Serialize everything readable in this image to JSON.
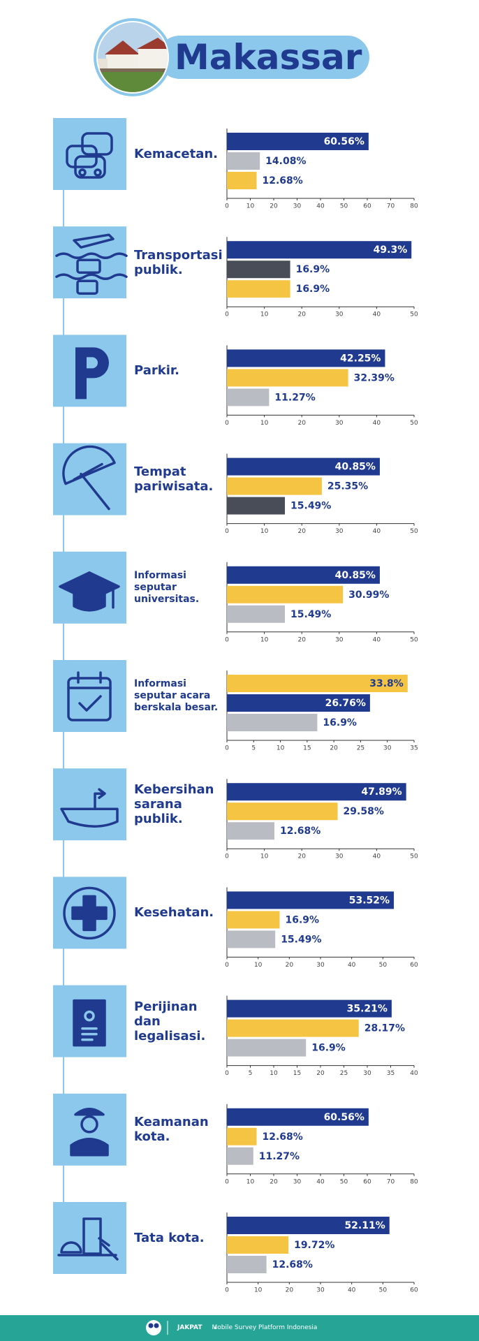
{
  "header": {
    "title": "Makassar"
  },
  "chart_data": [
    {
      "type": "bar",
      "orientation": "horizontal",
      "title": "Kemacetan.",
      "values": [
        60.56,
        14.08,
        12.68
      ],
      "value_labels": [
        "60.56%",
        "14.08%",
        "12.68%"
      ],
      "colors": [
        "#1f3a8f",
        "#b9bcc3",
        "#f5c443"
      ],
      "xlim": [
        0,
        80
      ],
      "xticks": [
        0,
        10,
        20,
        30,
        40,
        50,
        60,
        70,
        80
      ]
    },
    {
      "type": "bar",
      "orientation": "horizontal",
      "title": "Transportasi publik.",
      "values": [
        49.3,
        16.9,
        16.9
      ],
      "value_labels": [
        "49.3%",
        "16.9%",
        "16.9%"
      ],
      "colors": [
        "#1f3a8f",
        "#484d57",
        "#f5c443"
      ],
      "xlim": [
        0,
        50
      ],
      "xticks": [
        0,
        10,
        20,
        30,
        40,
        50
      ]
    },
    {
      "type": "bar",
      "orientation": "horizontal",
      "title": "Parkir.",
      "values": [
        42.25,
        32.39,
        11.27
      ],
      "value_labels": [
        "42.25%",
        "32.39%",
        "11.27%"
      ],
      "colors": [
        "#1f3a8f",
        "#f5c443",
        "#b9bcc3"
      ],
      "xlim": [
        0,
        50
      ],
      "xticks": [
        0,
        10,
        20,
        30,
        40,
        50
      ]
    },
    {
      "type": "bar",
      "orientation": "horizontal",
      "title": "Tempat pariwisata.",
      "values": [
        40.85,
        25.35,
        15.49
      ],
      "value_labels": [
        "40.85%",
        "25.35%",
        "15.49%"
      ],
      "colors": [
        "#1f3a8f",
        "#f5c443",
        "#484d57"
      ],
      "xlim": [
        0,
        50
      ],
      "xticks": [
        0,
        10,
        20,
        30,
        40,
        50
      ]
    },
    {
      "type": "bar",
      "orientation": "horizontal",
      "title": "Informasi seputar universitas.",
      "values": [
        40.85,
        30.99,
        15.49
      ],
      "value_labels": [
        "40.85%",
        "30.99%",
        "15.49%"
      ],
      "colors": [
        "#1f3a8f",
        "#f5c443",
        "#b9bcc3"
      ],
      "xlim": [
        0,
        50
      ],
      "xticks": [
        0,
        10,
        20,
        30,
        40,
        50
      ]
    },
    {
      "type": "bar",
      "orientation": "horizontal",
      "title": "Informasi seputar acara berskala besar.",
      "values": [
        33.8,
        26.76,
        16.9
      ],
      "value_labels": [
        "33.8%",
        "26.76%",
        "16.9%"
      ],
      "colors": [
        "#f5c443",
        "#1f3a8f",
        "#b9bcc3"
      ],
      "xlim": [
        0,
        35
      ],
      "xticks": [
        0,
        5,
        10,
        15,
        20,
        25,
        30,
        35
      ]
    },
    {
      "type": "bar",
      "orientation": "horizontal",
      "title": "Kebersihan sarana publik.",
      "values": [
        47.89,
        29.58,
        12.68
      ],
      "value_labels": [
        "47.89%",
        "29.58%",
        "12.68%"
      ],
      "colors": [
        "#1f3a8f",
        "#f5c443",
        "#b9bcc3"
      ],
      "xlim": [
        0,
        50
      ],
      "xticks": [
        0,
        10,
        20,
        30,
        40,
        50
      ]
    },
    {
      "type": "bar",
      "orientation": "horizontal",
      "title": "Kesehatan.",
      "values": [
        53.52,
        16.9,
        15.49
      ],
      "value_labels": [
        "53.52%",
        "16.9%",
        "15.49%"
      ],
      "colors": [
        "#1f3a8f",
        "#f5c443",
        "#b9bcc3"
      ],
      "xlim": [
        0,
        60
      ],
      "xticks": [
        0,
        10,
        20,
        30,
        40,
        50,
        60
      ]
    },
    {
      "type": "bar",
      "orientation": "horizontal",
      "title": "Perijinan dan legalisasi.",
      "values": [
        35.21,
        28.17,
        16.9
      ],
      "value_labels": [
        "35.21%",
        "28.17%",
        "16.9%"
      ],
      "colors": [
        "#1f3a8f",
        "#f5c443",
        "#b9bcc3"
      ],
      "xlim": [
        0,
        40
      ],
      "xticks": [
        0,
        5,
        10,
        15,
        20,
        25,
        30,
        35,
        40
      ]
    },
    {
      "type": "bar",
      "orientation": "horizontal",
      "title": "Keamanan kota.",
      "values": [
        60.56,
        12.68,
        11.27
      ],
      "value_labels": [
        "60.56%",
        "12.68%",
        "11.27%"
      ],
      "colors": [
        "#1f3a8f",
        "#f5c443",
        "#b9bcc3"
      ],
      "xlim": [
        0,
        80
      ],
      "xticks": [
        0,
        10,
        20,
        30,
        40,
        50,
        60,
        70,
        80
      ]
    },
    {
      "type": "bar",
      "orientation": "horizontal",
      "title": "Tata kota.",
      "values": [
        52.11,
        19.72,
        12.68
      ],
      "value_labels": [
        "52.11%",
        "19.72%",
        "12.68%"
      ],
      "colors": [
        "#1f3a8f",
        "#f5c443",
        "#b9bcc3"
      ],
      "xlim": [
        0,
        60
      ],
      "xticks": [
        0,
        10,
        20,
        30,
        40,
        50,
        60
      ]
    }
  ],
  "footer": {
    "brand": "JAKPAT",
    "tagline": "Mobile Survey Platform Indonesia"
  }
}
